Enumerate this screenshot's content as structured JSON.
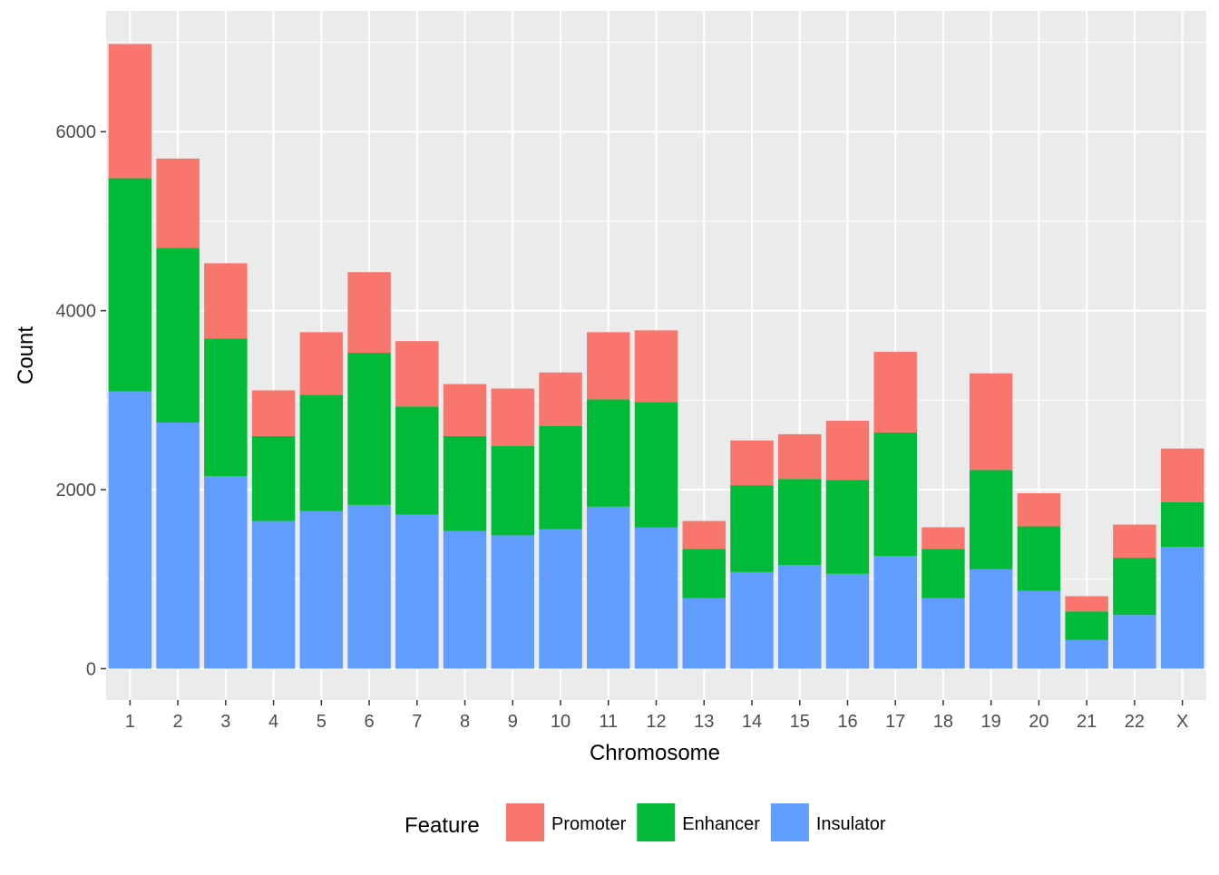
{
  "chart_data": {
    "type": "bar",
    "stacked": true,
    "xlabel": "Chromosome",
    "ylabel": "Count",
    "ylim": [
      -350,
      7350
    ],
    "yticks": [
      0,
      2000,
      4000,
      6000
    ],
    "grid": true,
    "legend_position": "bottom",
    "legend_title": "Feature",
    "categories": [
      "1",
      "2",
      "3",
      "4",
      "5",
      "6",
      "7",
      "8",
      "9",
      "10",
      "11",
      "12",
      "13",
      "14",
      "15",
      "16",
      "17",
      "18",
      "19",
      "20",
      "21",
      "22",
      "X"
    ],
    "series": [
      {
        "name": "Insulator",
        "color": "#619CFF",
        "values": [
          3100,
          2750,
          2150,
          1650,
          1760,
          1830,
          1720,
          1540,
          1490,
          1560,
          1810,
          1580,
          790,
          1080,
          1160,
          1060,
          1260,
          790,
          1110,
          870,
          320,
          600,
          1360
        ]
      },
      {
        "name": "Enhancer",
        "color": "#00BA38",
        "values": [
          2380,
          1950,
          1540,
          950,
          1300,
          1700,
          1210,
          1060,
          1000,
          1150,
          1200,
          1400,
          550,
          970,
          960,
          1050,
          1380,
          550,
          1110,
          720,
          320,
          640,
          500
        ]
      },
      {
        "name": "Promoter",
        "color": "#F8766D",
        "values": [
          1500,
          1000,
          840,
          510,
          700,
          900,
          730,
          580,
          640,
          600,
          750,
          800,
          310,
          500,
          500,
          660,
          900,
          240,
          1080,
          370,
          170,
          370,
          600
        ]
      }
    ],
    "legend_order": [
      "Promoter",
      "Enhancer",
      "Insulator"
    ]
  }
}
